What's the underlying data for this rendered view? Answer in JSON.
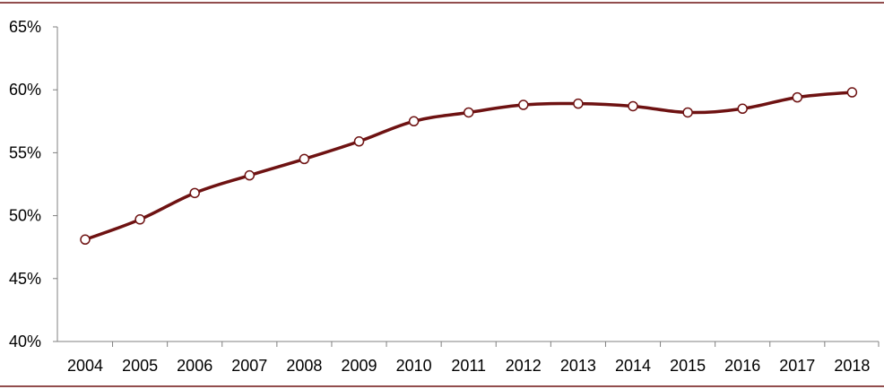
{
  "chart_data": {
    "type": "line",
    "title": "",
    "xlabel": "",
    "ylabel": "",
    "categories": [
      "2004",
      "2005",
      "2006",
      "2007",
      "2008",
      "2009",
      "2010",
      "2011",
      "2012",
      "2013",
      "2014",
      "2015",
      "2016",
      "2017",
      "2018"
    ],
    "series": [
      {
        "values": [
          48.1,
          49.7,
          51.8,
          53.2,
          54.5,
          55.9,
          57.5,
          58.2,
          58.8,
          58.9,
          58.7,
          58.2,
          58.5,
          59.4,
          59.8
        ]
      }
    ],
    "ylim": [
      40,
      65
    ],
    "y_ticks": [
      "40%",
      "45%",
      "50%",
      "55%",
      "60%",
      "65%"
    ],
    "grid": false,
    "legend": "none",
    "line_color": "#6e1212",
    "marker_fill": "#ffffff",
    "frame_color": "#6e1212",
    "axis_color": "#808080"
  }
}
